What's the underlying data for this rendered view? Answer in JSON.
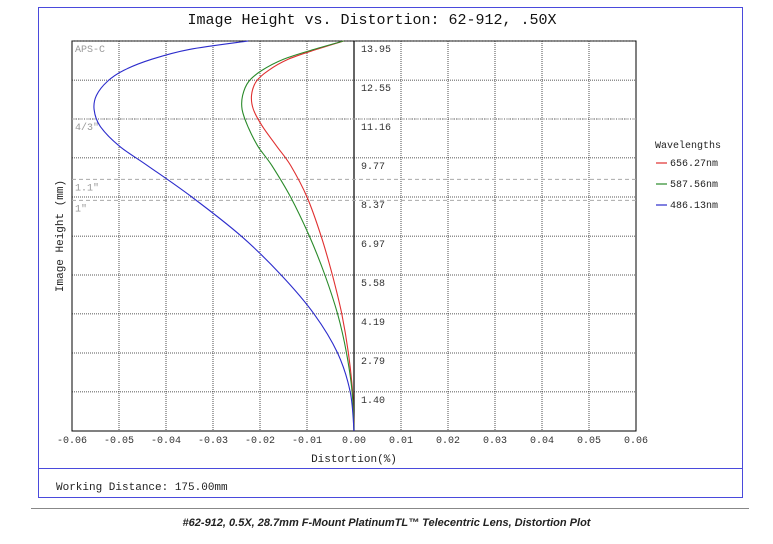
{
  "chart_data": {
    "type": "line",
    "title": "Image Height vs. Distortion: 62-912, .50X",
    "xlabel": "Distortion(%)",
    "ylabel": "Image Height (mm)",
    "xlim": [
      -0.06,
      0.06
    ],
    "ylim": [
      0,
      13.95
    ],
    "x_ticks": [
      "-0.06",
      "-0.05",
      "-0.04",
      "-0.03",
      "-0.02",
      "-0.01",
      "0.00",
      "0.01",
      "0.02",
      "0.03",
      "0.04",
      "0.05",
      "0.06"
    ],
    "y_ticks": [
      "1.40",
      "2.79",
      "4.19",
      "5.58",
      "6.97",
      "8.37",
      "9.77",
      "11.16",
      "12.55",
      "13.95"
    ],
    "grid": true,
    "legend_title": "Wavelengths",
    "legend_position": "right",
    "sensor_markers": [
      {
        "label": "APS-C",
        "y": 13.95
      },
      {
        "label": "4/3\"",
        "y": 11.16
      },
      {
        "label": "1.1\"",
        "y": 9.0
      },
      {
        "label": "1\"",
        "y": 8.25
      }
    ],
    "series": [
      {
        "name": "656.27nm",
        "color": "#e03030",
        "x": [
          0,
          -0.0003,
          -0.0012,
          -0.0026,
          -0.0046,
          -0.007,
          -0.01,
          -0.0135,
          -0.0165,
          -0.0195,
          -0.0214,
          -0.0218,
          -0.0208,
          -0.0182,
          -0.014,
          -0.008,
          -0.0022
        ],
        "y": [
          0,
          1.4,
          2.79,
          4.19,
          5.58,
          6.97,
          8.37,
          9.5,
          10.2,
          10.9,
          11.5,
          12.0,
          12.5,
          12.9,
          13.3,
          13.65,
          13.95
        ]
      },
      {
        "name": "587.56nm",
        "color": "#2a8a2a",
        "x": [
          0,
          -0.0004,
          -0.0016,
          -0.0035,
          -0.0062,
          -0.0095,
          -0.0135,
          -0.0175,
          -0.0205,
          -0.0226,
          -0.0238,
          -0.0237,
          -0.0224,
          -0.0196,
          -0.015,
          -0.0085,
          -0.0022
        ],
        "y": [
          0,
          1.4,
          2.79,
          4.19,
          5.58,
          6.97,
          8.37,
          9.5,
          10.2,
          10.9,
          11.5,
          12.0,
          12.5,
          12.9,
          13.3,
          13.65,
          13.95
        ]
      },
      {
        "name": "486.13nm",
        "color": "#2c2ccc",
        "x": [
          0,
          -0.0008,
          -0.0035,
          -0.0085,
          -0.0155,
          -0.024,
          -0.0345,
          -0.044,
          -0.05,
          -0.054,
          -0.0553,
          -0.0548,
          -0.0525,
          -0.049,
          -0.043,
          -0.035,
          -0.0225
        ],
        "y": [
          0,
          1.4,
          2.79,
          4.19,
          5.58,
          6.97,
          8.37,
          9.5,
          10.2,
          10.9,
          11.5,
          12.0,
          12.5,
          12.9,
          13.3,
          13.65,
          13.95
        ]
      }
    ]
  },
  "footer": {
    "working_distance": "Working Distance: 175.00mm",
    "caption": "#62-912, 0.5X, 28.7mm F-Mount PlatinumTL™ Telecentric Lens, Distortion Plot"
  }
}
